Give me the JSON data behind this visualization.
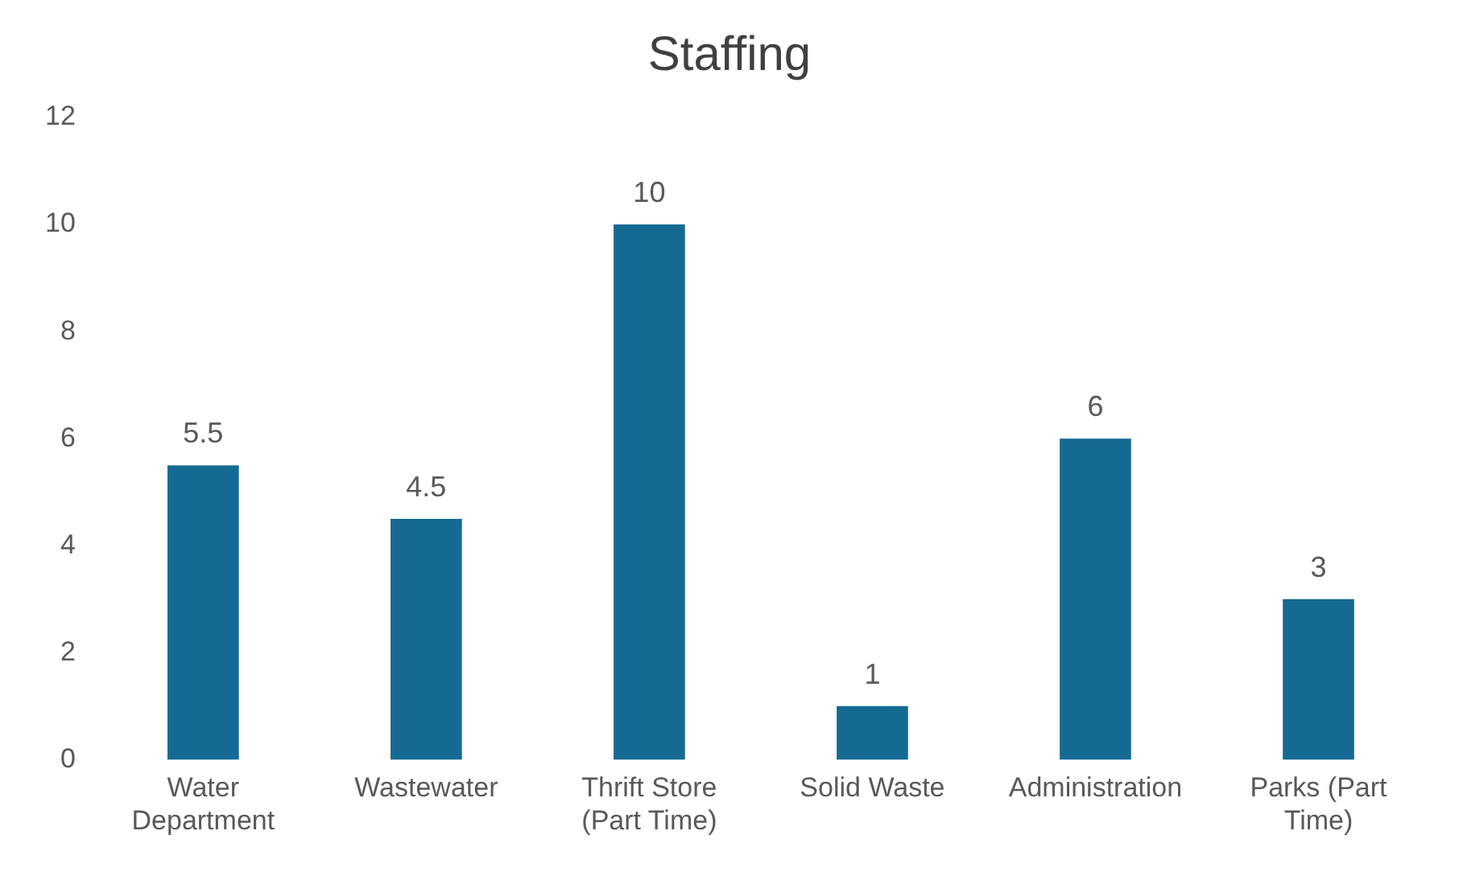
{
  "chart_data": {
    "type": "bar",
    "title": "Staffing",
    "categories": [
      "Water Department",
      "Wastewater",
      "Thrift Store (Part Time)",
      "Solid Waste",
      "Administration",
      "Parks (Part Time)"
    ],
    "values": [
      5.5,
      4.5,
      10,
      1,
      6,
      3
    ],
    "color": "#156a94",
    "ylim": [
      0,
      12
    ],
    "yticks": [
      0,
      2,
      4,
      6,
      8,
      10,
      12
    ],
    "grid": false,
    "data_labels": true
  }
}
